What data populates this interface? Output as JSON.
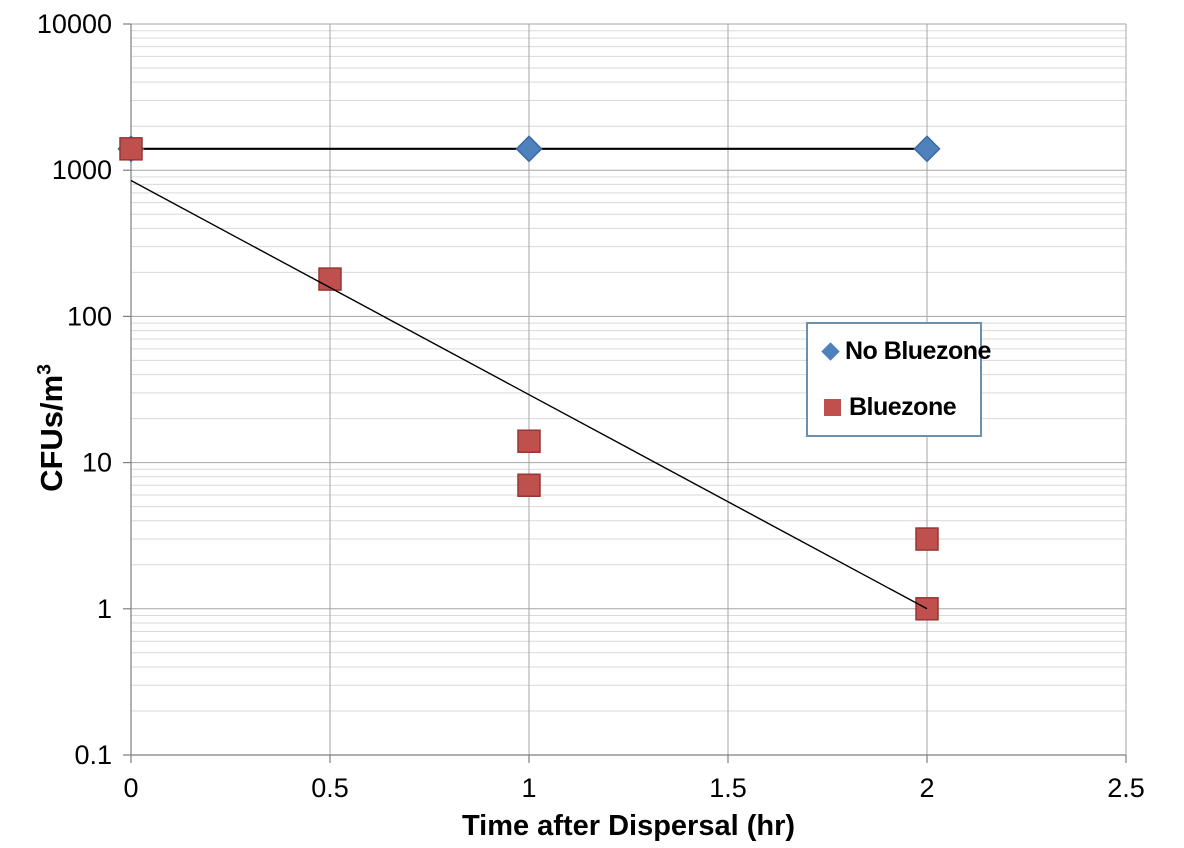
{
  "chart_data": {
    "type": "scatter",
    "title": "",
    "xlabel": "Time after Dispersal (hr)",
    "ylabel": {
      "base": "CFUs/m",
      "sup": "3",
      "full": "CFUs/m³"
    },
    "x_axis": {
      "min": 0,
      "max": 2.5,
      "tick_values": [
        0,
        0.5,
        1,
        1.5,
        2,
        2.5
      ],
      "tick_labels": [
        "0",
        "0.5",
        "1",
        "1.5",
        "2",
        "2.5"
      ]
    },
    "y_axis": {
      "scale": "log",
      "min": 0.1,
      "max": 10000,
      "tick_values": [
        10000,
        1000,
        100,
        10,
        1,
        0.1
      ],
      "tick_labels": [
        "10000",
        "1000",
        "100",
        "10",
        "1",
        "0.1"
      ]
    },
    "grid": {
      "horizontal_minor": true,
      "horizontal_major": true,
      "vertical_major": true
    },
    "series": [
      {
        "name": "No Bluezone",
        "marker": "diamond",
        "marker_color": "#4f81bd",
        "marker_edge": "#3a6ba5",
        "line_color": "#000000",
        "points": [
          {
            "x": 0,
            "y": 1400
          },
          {
            "x": 1,
            "y": 1400
          },
          {
            "x": 2,
            "y": 1400
          }
        ]
      },
      {
        "name": "Bluezone",
        "marker": "square",
        "marker_color": "#c0504d",
        "marker_edge": "#963634",
        "line_color": null,
        "points": [
          {
            "x": 0,
            "y": 1400
          },
          {
            "x": 0.5,
            "y": 180
          },
          {
            "x": 1,
            "y": 14
          },
          {
            "x": 1,
            "y": 7
          },
          {
            "x": 2,
            "y": 3
          },
          {
            "x": 2,
            "y": 1
          }
        ]
      }
    ],
    "trendline": {
      "for_series": "Bluezone",
      "shape": "exponential",
      "color": "#000000",
      "start": {
        "x": 0,
        "y": 850
      },
      "end": {
        "x": 2,
        "y": 1
      }
    },
    "legend": {
      "position": "middle-right",
      "border_color": "#6d8fae",
      "entries": [
        "No Bluezone",
        "Bluezone"
      ]
    }
  }
}
